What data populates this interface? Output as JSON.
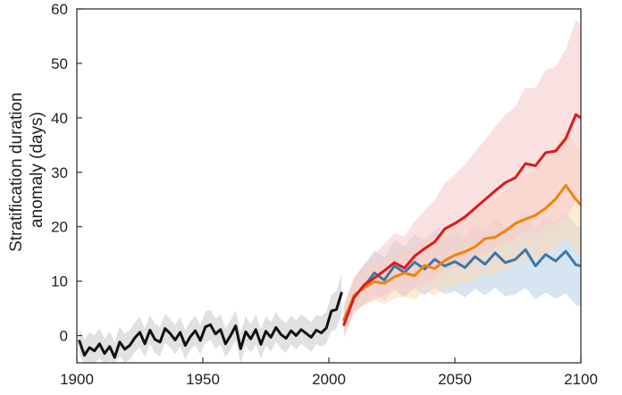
{
  "chart_data": {
    "type": "line",
    "title": "",
    "xlabel": "",
    "ylabel_lines": [
      "Stratification duration",
      "anomaly (days)"
    ],
    "xlim": [
      1900,
      2100
    ],
    "ylim": [
      -5,
      60
    ],
    "xticks": [
      "1900",
      "1950",
      "2000",
      "2050",
      "2100"
    ],
    "yticks": [
      "0",
      "10",
      "20",
      "30",
      "40",
      "50",
      "60"
    ],
    "grid": false,
    "legend": "none",
    "series": [
      {
        "key": "historical",
        "color": "#111111",
        "band_color": "#c8c8c8",
        "x": [
          1901,
          1903,
          1905,
          1907,
          1909,
          1911,
          1913,
          1915,
          1917,
          1919,
          1921,
          1923,
          1925,
          1927,
          1929,
          1931,
          1933,
          1935,
          1937,
          1939,
          1941,
          1943,
          1945,
          1947,
          1949,
          1951,
          1953,
          1955,
          1957,
          1959,
          1961,
          1963,
          1965,
          1967,
          1969,
          1971,
          1973,
          1975,
          1977,
          1979,
          1981,
          1983,
          1985,
          1987,
          1989,
          1991,
          1993,
          1995,
          1997,
          1999,
          2001,
          2003,
          2005
        ],
        "values": [
          -1.0,
          -3.6,
          -2.2,
          -2.8,
          -1.5,
          -3.3,
          -2.0,
          -4.0,
          -1.2,
          -2.5,
          -1.8,
          -0.4,
          0.6,
          -1.5,
          1.0,
          -0.7,
          -1.2,
          1.3,
          0.4,
          -0.8,
          0.6,
          -1.8,
          -0.2,
          0.9,
          -0.9,
          1.6,
          2.0,
          0.3,
          1.1,
          -1.5,
          0.0,
          1.8,
          -2.4,
          0.7,
          -0.6,
          1.1,
          -1.6,
          0.8,
          -0.3,
          1.5,
          0.2,
          -0.5,
          0.9,
          0.0,
          1.1,
          0.4,
          -0.3,
          1.0,
          0.5,
          1.4,
          4.5,
          4.8,
          7.8
        ],
        "band_low": [
          -3.5,
          -5.0,
          -4.8,
          -5.0,
          -4.2,
          -5.0,
          -4.6,
          -5.0,
          -3.8,
          -4.9,
          -4.5,
          -3.0,
          -2.2,
          -4.0,
          -1.6,
          -3.2,
          -3.8,
          -1.2,
          -2.2,
          -3.4,
          -2.0,
          -4.4,
          -2.6,
          -1.8,
          -3.5,
          -1.2,
          -0.8,
          -2.4,
          -1.6,
          -4.0,
          -2.6,
          -0.9,
          -5.0,
          -1.8,
          -3.2,
          -1.6,
          -4.2,
          -1.8,
          -2.9,
          -1.2,
          -2.4,
          -3.2,
          -1.6,
          -2.6,
          -1.6,
          -2.2,
          -3.0,
          -1.6,
          -2.0,
          -1.4,
          0.8,
          1.2,
          4.0
        ],
        "band_high": [
          1.4,
          -0.8,
          0.6,
          0.0,
          1.3,
          -0.6,
          0.8,
          -1.2,
          1.6,
          0.3,
          1.0,
          2.4,
          3.4,
          1.3,
          3.8,
          2.1,
          1.6,
          4.0,
          3.1,
          2.0,
          3.4,
          1.0,
          2.6,
          3.7,
          1.9,
          4.4,
          4.8,
          3.1,
          3.9,
          1.3,
          2.8,
          4.6,
          0.6,
          3.5,
          2.2,
          3.9,
          1.2,
          3.6,
          2.5,
          4.3,
          3.0,
          2.3,
          3.7,
          2.8,
          3.9,
          3.2,
          2.5,
          3.8,
          3.5,
          4.4,
          7.5,
          8.2,
          11.5
        ]
      },
      {
        "key": "low-emissions",
        "color": "#3d76a8",
        "band_color": "#b7d0e8",
        "x": [
          2006,
          2010,
          2014,
          2018,
          2022,
          2026,
          2030,
          2034,
          2038,
          2042,
          2046,
          2050,
          2054,
          2058,
          2062,
          2066,
          2070,
          2074,
          2078,
          2082,
          2086,
          2090,
          2094,
          2098,
          2100
        ],
        "values": [
          3.0,
          7.2,
          9.0,
          11.5,
          10.2,
          12.8,
          11.6,
          13.5,
          12.2,
          14.0,
          12.8,
          13.6,
          12.5,
          14.5,
          13.1,
          15.2,
          13.4,
          14.0,
          15.8,
          12.8,
          14.9,
          13.7,
          15.5,
          13.0,
          12.8
        ],
        "band_low": [
          0.8,
          4.5,
          5.8,
          7.6,
          6.5,
          8.4,
          7.0,
          8.6,
          7.4,
          8.8,
          7.6,
          8.2,
          7.0,
          8.6,
          7.4,
          8.8,
          7.2,
          7.6,
          8.8,
          6.6,
          7.9,
          6.8,
          7.7,
          5.6,
          5.4
        ],
        "band_high": [
          5.8,
          10.6,
          13.0,
          15.6,
          14.4,
          17.6,
          16.4,
          18.6,
          17.4,
          19.4,
          18.2,
          19.2,
          18.2,
          20.6,
          19.2,
          21.6,
          20.0,
          20.6,
          22.8,
          19.6,
          21.9,
          20.8,
          22.6,
          20.2,
          19.8
        ]
      },
      {
        "key": "intermediate-emissions",
        "color": "#f5820b",
        "band_color": "#fbd9b6",
        "x": [
          2006,
          2010,
          2014,
          2018,
          2022,
          2026,
          2030,
          2034,
          2038,
          2042,
          2046,
          2050,
          2054,
          2058,
          2062,
          2066,
          2070,
          2074,
          2078,
          2082,
          2086,
          2090,
          2094,
          2098,
          2100
        ],
        "values": [
          2.8,
          7.4,
          8.8,
          9.9,
          9.6,
          10.8,
          11.5,
          11.0,
          12.9,
          12.3,
          13.8,
          14.8,
          15.4,
          16.3,
          17.8,
          18.1,
          19.2,
          20.6,
          21.4,
          22.1,
          23.4,
          25.1,
          27.6,
          25.0,
          24.0
        ],
        "band_low": [
          0.5,
          4.6,
          5.6,
          6.4,
          5.8,
          6.8,
          7.2,
          6.6,
          8.2,
          7.4,
          8.6,
          9.2,
          9.6,
          10.2,
          11.4,
          11.4,
          12.2,
          13.2,
          13.6,
          14.0,
          14.8,
          16.0,
          17.8,
          15.6,
          14.8
        ],
        "band_high": [
          5.4,
          10.8,
          12.4,
          13.6,
          13.6,
          15.0,
          16.0,
          15.8,
          18.0,
          17.6,
          19.4,
          20.8,
          21.6,
          22.8,
          24.6,
          25.2,
          26.6,
          28.4,
          29.6,
          30.6,
          32.4,
          34.6,
          37.8,
          35.0,
          34.0
        ]
      },
      {
        "key": "high-emissions",
        "color": "#e0181c",
        "band_color": "#f6c9c9",
        "x": [
          2006,
          2010,
          2014,
          2018,
          2022,
          2026,
          2030,
          2034,
          2038,
          2042,
          2046,
          2050,
          2054,
          2058,
          2062,
          2066,
          2070,
          2074,
          2078,
          2082,
          2086,
          2090,
          2094,
          2098,
          2100
        ],
        "values": [
          2.0,
          7.0,
          9.3,
          10.6,
          11.9,
          13.4,
          12.4,
          14.6,
          16.0,
          17.2,
          19.6,
          20.6,
          21.8,
          23.4,
          25.0,
          26.6,
          28.1,
          29.0,
          31.6,
          31.2,
          33.6,
          33.9,
          36.2,
          40.6,
          40.0
        ],
        "band_low": [
          -0.5,
          4.0,
          5.8,
          6.6,
          7.4,
          8.4,
          7.4,
          8.8,
          9.6,
          10.4,
          12.0,
          12.4,
          13.2,
          14.2,
          15.2,
          16.2,
          17.2,
          17.6,
          19.2,
          18.8,
          20.4,
          20.4,
          21.8,
          24.6,
          24.0
        ],
        "band_high": [
          4.8,
          10.4,
          13.2,
          15.0,
          16.8,
          18.8,
          18.2,
          21.0,
          23.0,
          24.8,
          28.0,
          29.6,
          31.4,
          33.8,
          36.0,
          38.4,
          40.6,
          42.0,
          45.6,
          45.4,
          48.8,
          49.4,
          52.6,
          58.0,
          57.0
        ]
      }
    ]
  }
}
